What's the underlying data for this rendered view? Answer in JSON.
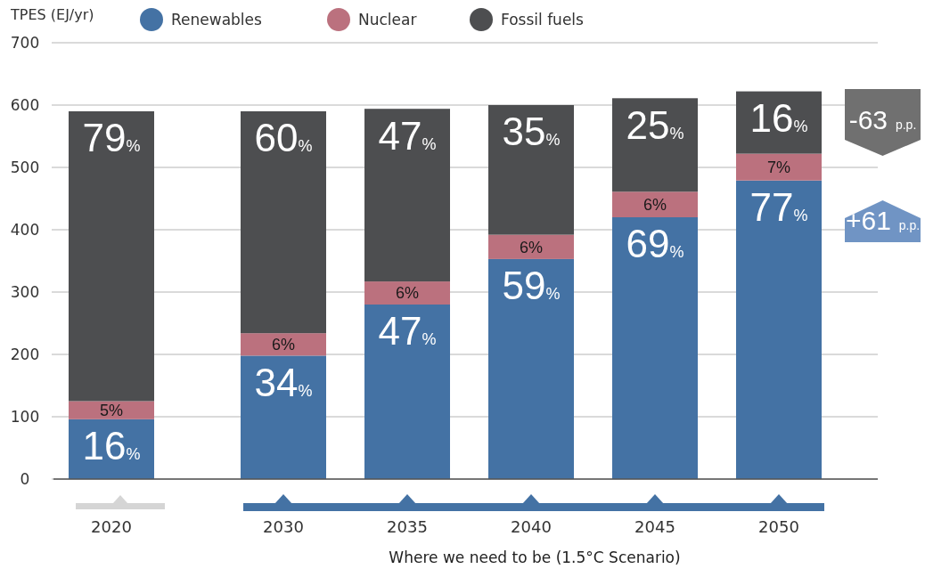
{
  "chart_data": {
    "type": "bar",
    "stacked": true,
    "ylabel": "TPES (EJ/yr)",
    "xlabel": "Where we need to be (1.5°C Scenario)",
    "categories": [
      "2020",
      "2030",
      "2035",
      "2040",
      "2045",
      "2050"
    ],
    "series": [
      {
        "name": "Renewables",
        "color": "#4472a4",
        "values": [
          96,
          198,
          280,
          353,
          420,
          479
        ]
      },
      {
        "name": "Nuclear",
        "color": "#bb717e",
        "values": [
          29,
          36,
          37,
          39,
          41,
          43
        ]
      },
      {
        "name": "Fossil fuels",
        "color": "#4d4e50",
        "values": [
          465,
          356,
          277,
          208,
          150,
          100
        ]
      }
    ],
    "ylim": [
      0,
      700
    ],
    "yticks": [
      0,
      100,
      200,
      300,
      400,
      500,
      600,
      700
    ],
    "grid": "y",
    "legend": "top",
    "annotations": [
      "-63 p.p.",
      "+61 p.p.",
      {
        "text": "16%",
        "x": "2020",
        "y": 96
      },
      {
        "text": "34%",
        "x": "2030",
        "y": 198
      },
      {
        "text": "47%",
        "x": "2035",
        "y": 280
      },
      {
        "text": "59%",
        "x": "2040",
        "y": 353
      },
      {
        "text": "69%",
        "x": "2045",
        "y": 420
      },
      {
        "text": "77%",
        "x": "2050",
        "y": 479
      },
      {
        "text": "5%",
        "x": "2020",
        "y": 125
      },
      {
        "text": "6%",
        "x": "2030",
        "y": 234
      },
      {
        "text": "6%",
        "x": "2035",
        "y": 317
      },
      {
        "text": "6%",
        "x": "2040",
        "y": 392
      },
      {
        "text": "6%",
        "x": "2045",
        "y": 461
      },
      {
        "text": "7%",
        "x": "2050",
        "y": 522
      },
      {
        "text": "79%",
        "x": "2020",
        "y": 590
      },
      {
        "text": "60%",
        "x": "2030",
        "y": 590
      },
      {
        "text": "47%",
        "x": "2035",
        "y": 594
      },
      {
        "text": "35%",
        "x": "2040",
        "y": 600
      },
      {
        "text": "25%",
        "x": "2045",
        "y": 611
      },
      {
        "text": "16%",
        "x": "2050",
        "y": 622
      }
    ]
  }
}
